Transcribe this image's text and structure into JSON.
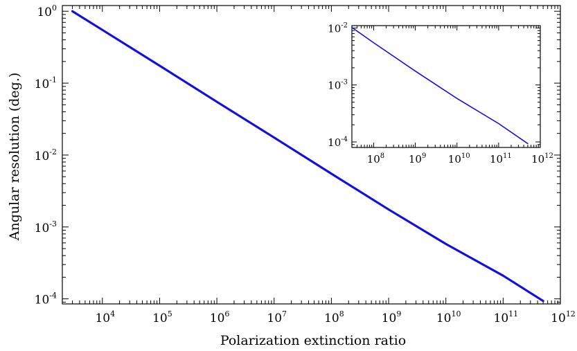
{
  "chart_data": [
    {
      "type": "line",
      "title": "",
      "xlabel": "Polarization extinction ratio",
      "ylabel": "Angular resolution (deg.)",
      "xscale": "log",
      "yscale": "log",
      "xlim": [
        2000.0,
        1000000000000.0
      ],
      "ylim": [
        8.5e-05,
        1.2
      ],
      "xticks": [
        {
          "base": "10",
          "exp": "4",
          "value": 10000.0
        },
        {
          "base": "10",
          "exp": "5",
          "value": 100000.0
        },
        {
          "base": "10",
          "exp": "6",
          "value": 1000000.0
        },
        {
          "base": "10",
          "exp": "7",
          "value": 10000000.0
        },
        {
          "base": "10",
          "exp": "8",
          "value": 100000000.0
        },
        {
          "base": "10",
          "exp": "9",
          "value": 1000000000.0
        },
        {
          "base": "10",
          "exp": "10",
          "value": 10000000000.0
        },
        {
          "base": "10",
          "exp": "11",
          "value": 100000000000.0
        },
        {
          "base": "10",
          "exp": "12",
          "value": 1000000000000.0
        }
      ],
      "yticks": [
        {
          "base": "10",
          "exp": "0",
          "value": 1
        },
        {
          "base": "10",
          "exp": "-1",
          "value": 0.1
        },
        {
          "base": "10",
          "exp": "-2",
          "value": 0.01
        },
        {
          "base": "10",
          "exp": "-3",
          "value": 0.001
        },
        {
          "base": "10",
          "exp": "-4",
          "value": 0.0001
        }
      ],
      "grid": false,
      "legend": "none",
      "series": [
        {
          "color": "#1010e0",
          "x": [
            3000.0,
            10000.0,
            100000.0,
            1000000.0,
            10000000.0,
            100000000.0,
            1000000000.0,
            10000000000.0,
            100000000000.0,
            500000000000.0
          ],
          "y": [
            1.0,
            0.55,
            0.175,
            0.055,
            0.0175,
            0.0055,
            0.00175,
            0.00058,
            0.00021,
            9.35e-05
          ]
        }
      ]
    },
    {
      "type": "line",
      "title": "",
      "xlabel": "",
      "ylabel": "",
      "placement": "top-right inset",
      "xscale": "log",
      "yscale": "log",
      "xlim": [
        30000000.0,
        1000000000000.0
      ],
      "ylim": [
        8e-05,
        0.011
      ],
      "xticks": [
        {
          "base": "10",
          "exp": "8",
          "value": 100000000.0
        },
        {
          "base": "10",
          "exp": "9",
          "value": 1000000000.0
        },
        {
          "base": "10",
          "exp": "10",
          "value": 10000000000.0
        },
        {
          "base": "10",
          "exp": "11",
          "value": 100000000000.0
        },
        {
          "base": "10",
          "exp": "12",
          "value": 1000000000000.0
        }
      ],
      "yticks": [
        {
          "base": "10",
          "exp": "-2",
          "value": 0.01
        },
        {
          "base": "10",
          "exp": "-3",
          "value": 0.001
        },
        {
          "base": "10",
          "exp": "-4",
          "value": 0.0001
        }
      ],
      "grid": false,
      "legend": "none",
      "series": [
        {
          "color": "#1010e0",
          "x": [
            30000000.0,
            100000000.0,
            1000000000.0,
            10000000000.0,
            100000000000.0,
            500000000000.0
          ],
          "y": [
            0.0102,
            0.0055,
            0.00175,
            0.00058,
            0.00021,
            9.35e-05
          ]
        }
      ]
    }
  ]
}
